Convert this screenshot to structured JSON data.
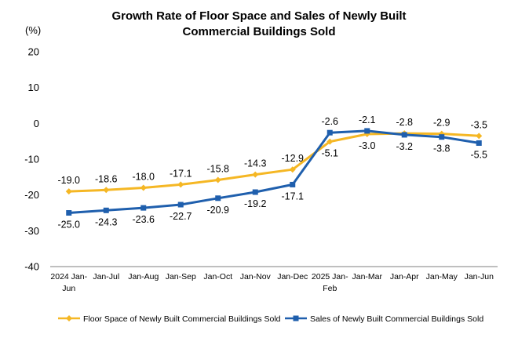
{
  "chart_data": {
    "type": "line",
    "title_lines": [
      "Growth Rate of Floor Space and Sales of Newly Built",
      "Commercial Buildings Sold"
    ],
    "ylabel": "(%)",
    "ylim": [
      -40,
      20
    ],
    "yticks": [
      20,
      10,
      0,
      -10,
      -20,
      -30,
      -40
    ],
    "grid": false,
    "legend_position": "bottom",
    "categories": [
      [
        "2024 Jan-",
        "Jun"
      ],
      [
        "Jan-Jul"
      ],
      [
        "Jan-Aug"
      ],
      [
        "Jan-Sep"
      ],
      [
        "Jan-Oct"
      ],
      [
        "Jan-Nov"
      ],
      [
        "Jan-Dec"
      ],
      [
        "2025 Jan-",
        "Feb"
      ],
      [
        "Jan-Mar"
      ],
      [
        "Jan-Apr"
      ],
      [
        "Jan-May"
      ],
      [
        "Jan-Jun"
      ]
    ],
    "series": [
      {
        "name": "Floor Space of Newly Built Commercial Buildings Sold",
        "color": "#F5B724",
        "marker": "diamond",
        "values": [
          -19.0,
          -18.6,
          -18.0,
          -17.1,
          -15.8,
          -14.3,
          -12.9,
          -5.1,
          -3.0,
          -2.8,
          -2.9,
          -3.5
        ],
        "labels": [
          "-19.0",
          "-18.6",
          "-18.0",
          "-17.1",
          "-15.8",
          "-14.3",
          "-12.9",
          "-5.1",
          "-3.0",
          "-2.8",
          "-2.9",
          "-3.5"
        ],
        "label_side": [
          "above",
          "above",
          "above",
          "above",
          "above",
          "above",
          "above",
          "below",
          "below",
          "above",
          "above",
          "above"
        ]
      },
      {
        "name": "Sales of Newly Built Commercial Buildings Sold",
        "color": "#1F5FAD",
        "marker": "square",
        "values": [
          -25.0,
          -24.3,
          -23.6,
          -22.7,
          -20.9,
          -19.2,
          -17.1,
          -2.6,
          -2.1,
          -3.2,
          -3.8,
          -5.5
        ],
        "labels": [
          "-25.0",
          "-24.3",
          "-23.6",
          "-22.7",
          "-20.9",
          "-19.2",
          "-17.1",
          "-2.6",
          "-2.1",
          "-3.2",
          "-3.8",
          "-5.5"
        ],
        "label_side": [
          "below",
          "below",
          "below",
          "below",
          "below",
          "below",
          "below",
          "above",
          "above",
          "below",
          "below",
          "below"
        ]
      }
    ]
  }
}
